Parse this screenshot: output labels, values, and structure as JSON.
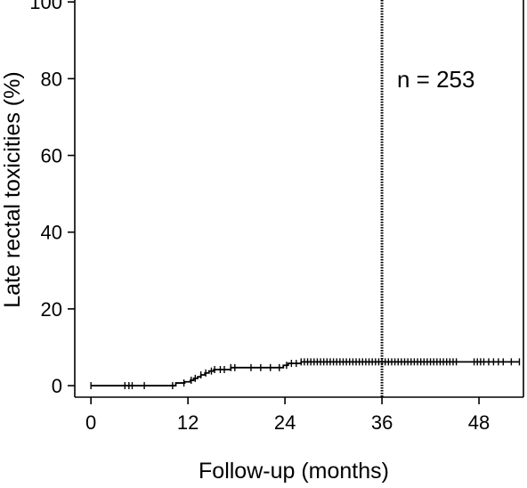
{
  "chart_data": {
    "type": "line",
    "xlabel": "Follow-up (months)",
    "ylabel": "Late rectal toxicities (%)",
    "xlim": [
      -2,
      53.5
    ],
    "ylim": [
      -3,
      100.5
    ],
    "x_ticks": [
      0,
      12,
      24,
      36,
      48
    ],
    "y_ticks": [
      0,
      20,
      40,
      60,
      80,
      100
    ],
    "annotation": "n = 253",
    "reference_line": {
      "x": 36,
      "style": "dotted"
    },
    "series": [
      {
        "step": [
          [
            0,
            0
          ],
          [
            10.5,
            0.7
          ],
          [
            11.6,
            1.0
          ],
          [
            12.3,
            1.4
          ],
          [
            12.7,
            1.9
          ],
          [
            13.2,
            2.3
          ],
          [
            13.6,
            2.8
          ],
          [
            14.1,
            3.3
          ],
          [
            14.6,
            3.8
          ],
          [
            15.2,
            4.2
          ],
          [
            17.3,
            4.7
          ],
          [
            23.8,
            5.3
          ],
          [
            24.4,
            5.8
          ],
          [
            26.0,
            6.2
          ]
        ],
        "end_x": 53.0,
        "censored_x": [
          0,
          4.2,
          4.7,
          5.1,
          6.6,
          10.1,
          11.5,
          12.4,
          12.9,
          13.6,
          14.2,
          14.9,
          15.3,
          16.0,
          16.5,
          17.3,
          17.8,
          19.8,
          21.0,
          22.2,
          23.3,
          24.2,
          24.8,
          25.4,
          26.0,
          26.4,
          26.8,
          27.2,
          27.6,
          28.0,
          28.4,
          28.8,
          29.2,
          29.6,
          30.0,
          30.4,
          30.8,
          31.2,
          31.6,
          32.0,
          32.4,
          32.8,
          33.2,
          33.6,
          34.0,
          34.4,
          34.8,
          35.2,
          35.6,
          36.0,
          36.4,
          36.8,
          37.2,
          37.6,
          38.0,
          38.4,
          38.8,
          39.2,
          39.6,
          40.0,
          40.4,
          40.8,
          41.2,
          41.6,
          42.0,
          42.4,
          42.8,
          43.2,
          43.6,
          44.0,
          44.4,
          44.8,
          45.2,
          47.4,
          47.8,
          48.2,
          48.6,
          49.2,
          49.8,
          50.4,
          51.0,
          52.0,
          53.0
        ]
      }
    ]
  }
}
